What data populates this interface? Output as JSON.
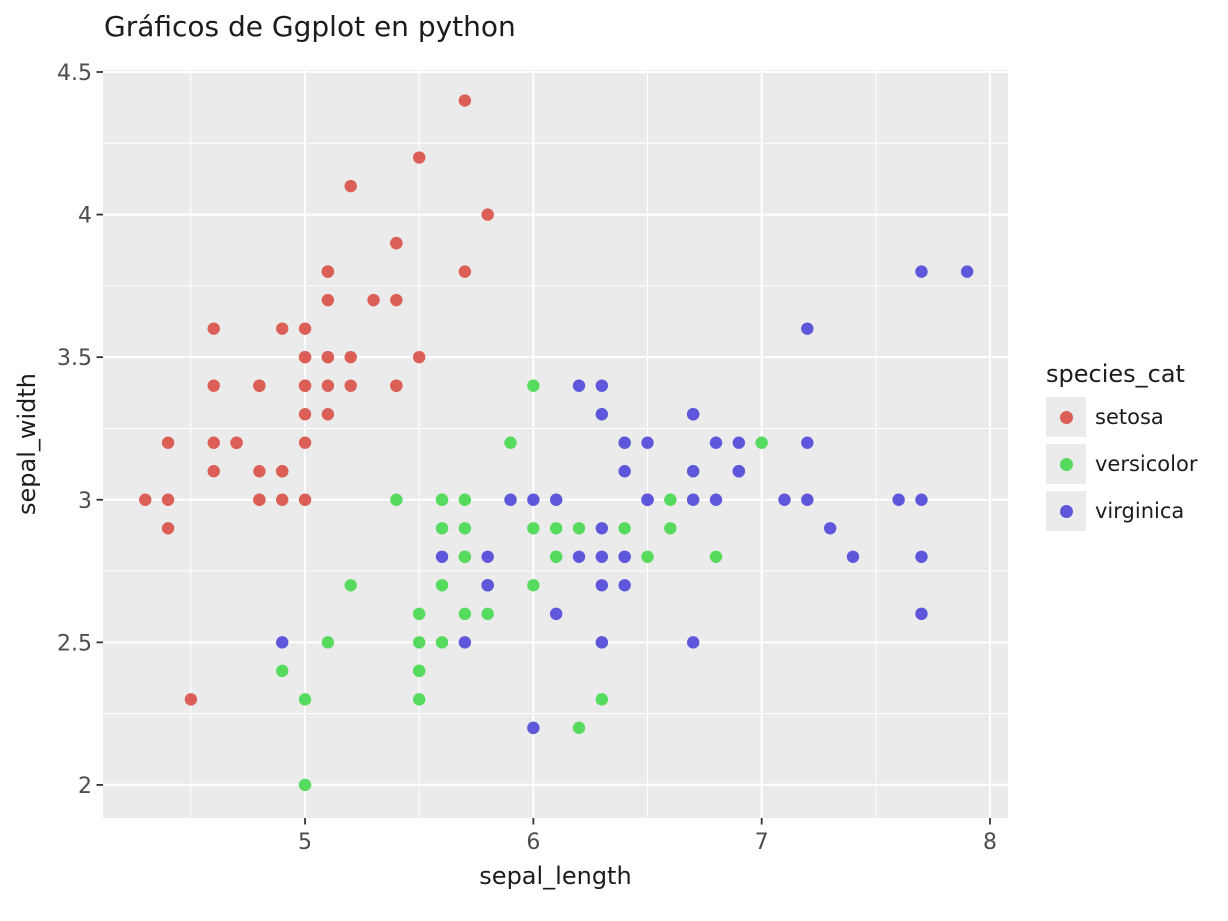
{
  "chart_data": {
    "type": "scatter",
    "title": "Gráficos de Ggplot en python",
    "xlabel": "sepal_length",
    "ylabel": "sepal_width",
    "legend_title": "species_cat",
    "legend_position": "right",
    "grid": true,
    "panel_bg": "#EBEBEB",
    "grid_color": "#FFFFFF",
    "tick_color": "#333333",
    "tick_label_color": "#4d4d4d",
    "xlim": [
      4.115,
      8.079
    ],
    "ylim": [
      1.884,
      4.507
    ],
    "xticks": {
      "values": [
        5,
        6,
        7,
        8
      ],
      "labels": [
        "5",
        "6",
        "7",
        "8"
      ]
    },
    "yticks": {
      "values": [
        2,
        2.5,
        3,
        3.5,
        4,
        4.5
      ],
      "labels": [
        "2",
        "2.5",
        "3",
        "3.5",
        "4",
        "4.5"
      ]
    },
    "xminor": [
      4.5,
      5.5,
      6.5,
      7.5
    ],
    "yminor": [
      2.25,
      2.75,
      3.25,
      3.75,
      4.25
    ],
    "series": [
      {
        "name": "setosa",
        "color": "#DB5F57",
        "points": [
          [
            5.1,
            3.5
          ],
          [
            4.9,
            3.0
          ],
          [
            4.7,
            3.2
          ],
          [
            4.6,
            3.1
          ],
          [
            5.0,
            3.6
          ],
          [
            5.4,
            3.9
          ],
          [
            4.6,
            3.4
          ],
          [
            5.0,
            3.4
          ],
          [
            4.4,
            2.9
          ],
          [
            4.9,
            3.1
          ],
          [
            5.4,
            3.7
          ],
          [
            4.8,
            3.4
          ],
          [
            4.8,
            3.0
          ],
          [
            4.3,
            3.0
          ],
          [
            5.8,
            4.0
          ],
          [
            5.7,
            4.4
          ],
          [
            5.4,
            3.9
          ],
          [
            5.1,
            3.5
          ],
          [
            5.7,
            3.8
          ],
          [
            5.1,
            3.8
          ],
          [
            5.4,
            3.4
          ],
          [
            5.1,
            3.7
          ],
          [
            4.6,
            3.6
          ],
          [
            5.1,
            3.3
          ],
          [
            4.8,
            3.4
          ],
          [
            5.0,
            3.0
          ],
          [
            5.0,
            3.4
          ],
          [
            5.2,
            3.5
          ],
          [
            5.2,
            3.4
          ],
          [
            4.7,
            3.2
          ],
          [
            4.8,
            3.1
          ],
          [
            5.4,
            3.4
          ],
          [
            5.2,
            4.1
          ],
          [
            5.5,
            4.2
          ],
          [
            4.9,
            3.1
          ],
          [
            5.0,
            3.2
          ],
          [
            5.5,
            3.5
          ],
          [
            4.9,
            3.6
          ],
          [
            4.4,
            3.0
          ],
          [
            5.1,
            3.4
          ],
          [
            5.0,
            3.5
          ],
          [
            4.5,
            2.3
          ],
          [
            4.4,
            3.2
          ],
          [
            5.0,
            3.5
          ],
          [
            5.1,
            3.8
          ],
          [
            4.8,
            3.0
          ],
          [
            5.1,
            3.8
          ],
          [
            4.6,
            3.2
          ],
          [
            5.3,
            3.7
          ],
          [
            5.0,
            3.3
          ]
        ]
      },
      {
        "name": "versicolor",
        "color": "#57DB5F",
        "points": [
          [
            7.0,
            3.2
          ],
          [
            6.4,
            3.2
          ],
          [
            6.9,
            3.1
          ],
          [
            5.5,
            2.3
          ],
          [
            6.5,
            2.8
          ],
          [
            5.7,
            2.8
          ],
          [
            6.3,
            3.3
          ],
          [
            4.9,
            2.4
          ],
          [
            6.6,
            2.9
          ],
          [
            5.2,
            2.7
          ],
          [
            5.0,
            2.0
          ],
          [
            5.9,
            3.0
          ],
          [
            6.0,
            2.2
          ],
          [
            6.1,
            2.9
          ],
          [
            5.6,
            2.9
          ],
          [
            6.7,
            3.1
          ],
          [
            5.6,
            3.0
          ],
          [
            5.8,
            2.7
          ],
          [
            6.2,
            2.2
          ],
          [
            5.6,
            2.5
          ],
          [
            5.9,
            3.2
          ],
          [
            6.1,
            2.8
          ],
          [
            6.3,
            2.5
          ],
          [
            6.1,
            2.8
          ],
          [
            6.4,
            2.9
          ],
          [
            6.6,
            3.0
          ],
          [
            6.8,
            2.8
          ],
          [
            6.7,
            3.0
          ],
          [
            6.0,
            2.9
          ],
          [
            5.7,
            2.6
          ],
          [
            5.5,
            2.4
          ],
          [
            5.5,
            2.4
          ],
          [
            5.8,
            2.7
          ],
          [
            6.0,
            2.7
          ],
          [
            5.4,
            3.0
          ],
          [
            6.0,
            3.4
          ],
          [
            6.7,
            3.1
          ],
          [
            6.3,
            2.3
          ],
          [
            5.6,
            3.0
          ],
          [
            5.5,
            2.5
          ],
          [
            5.5,
            2.6
          ],
          [
            6.1,
            3.0
          ],
          [
            5.8,
            2.6
          ],
          [
            5.0,
            2.3
          ],
          [
            5.6,
            2.7
          ],
          [
            5.7,
            3.0
          ],
          [
            5.7,
            2.9
          ],
          [
            6.2,
            2.9
          ],
          [
            5.1,
            2.5
          ],
          [
            5.7,
            2.8
          ]
        ]
      },
      {
        "name": "virginica",
        "color": "#5F57DB",
        "points": [
          [
            6.3,
            3.3
          ],
          [
            5.8,
            2.7
          ],
          [
            7.1,
            3.0
          ],
          [
            6.3,
            2.9
          ],
          [
            6.5,
            3.0
          ],
          [
            7.6,
            3.0
          ],
          [
            4.9,
            2.5
          ],
          [
            7.3,
            2.9
          ],
          [
            6.7,
            2.5
          ],
          [
            7.2,
            3.6
          ],
          [
            6.5,
            3.2
          ],
          [
            6.4,
            2.7
          ],
          [
            6.8,
            3.0
          ],
          [
            5.7,
            2.5
          ],
          [
            5.8,
            2.8
          ],
          [
            6.4,
            3.2
          ],
          [
            6.5,
            3.0
          ],
          [
            7.7,
            3.8
          ],
          [
            7.7,
            2.6
          ],
          [
            6.0,
            2.2
          ],
          [
            6.9,
            3.2
          ],
          [
            5.6,
            2.8
          ],
          [
            7.7,
            2.8
          ],
          [
            6.3,
            2.7
          ],
          [
            6.7,
            3.3
          ],
          [
            7.2,
            3.2
          ],
          [
            6.2,
            2.8
          ],
          [
            6.1,
            3.0
          ],
          [
            6.4,
            2.8
          ],
          [
            7.2,
            3.0
          ],
          [
            7.4,
            2.8
          ],
          [
            7.9,
            3.8
          ],
          [
            6.4,
            2.8
          ],
          [
            6.3,
            2.8
          ],
          [
            6.1,
            2.6
          ],
          [
            7.7,
            3.0
          ],
          [
            6.3,
            3.4
          ],
          [
            6.4,
            3.1
          ],
          [
            6.0,
            3.0
          ],
          [
            6.9,
            3.1
          ],
          [
            6.7,
            3.1
          ],
          [
            6.9,
            3.1
          ],
          [
            5.8,
            2.7
          ],
          [
            6.8,
            3.2
          ],
          [
            6.7,
            3.3
          ],
          [
            6.7,
            3.0
          ],
          [
            6.3,
            2.5
          ],
          [
            6.5,
            3.0
          ],
          [
            6.2,
            3.4
          ],
          [
            5.9,
            3.0
          ]
        ]
      }
    ]
  }
}
